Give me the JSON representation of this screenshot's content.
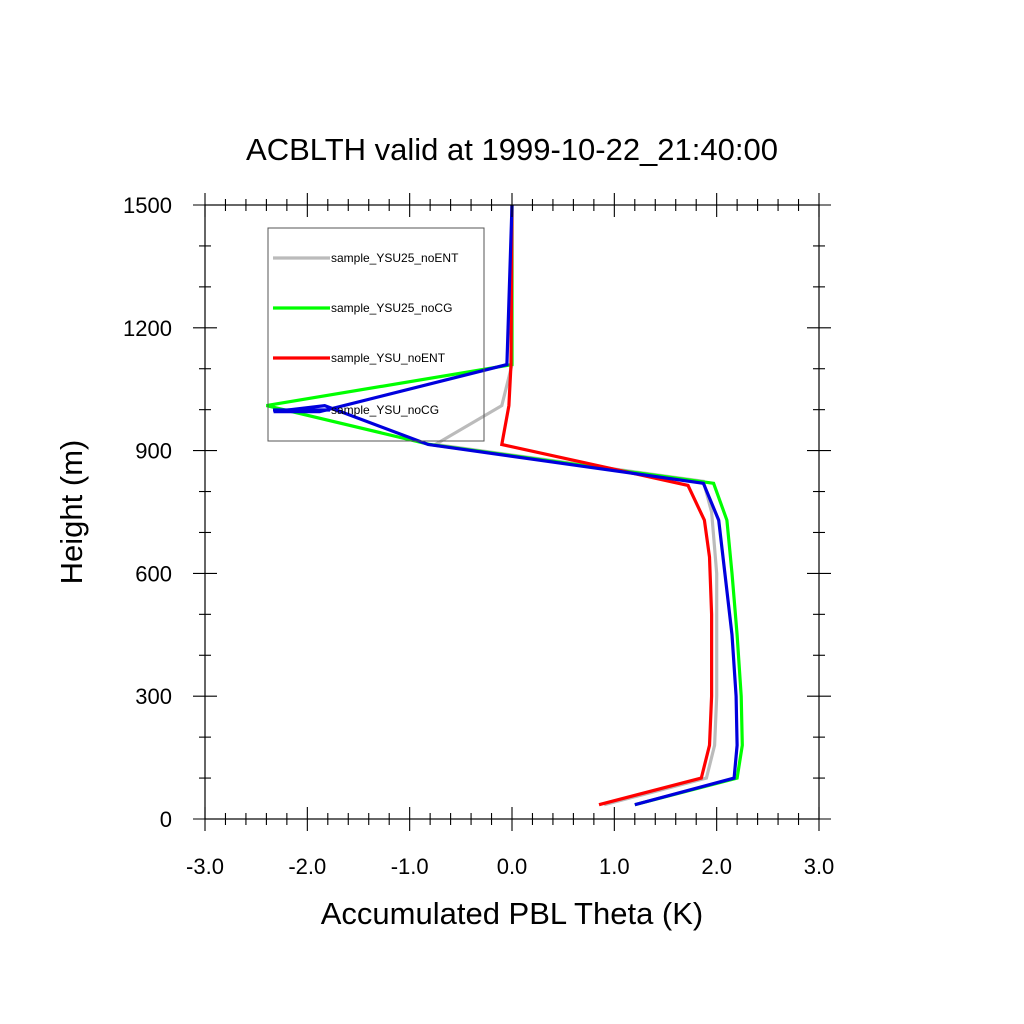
{
  "chart_data": {
    "type": "line",
    "title": "ACBLTH valid at 1999-10-22_21:40:00",
    "xlabel": "Accumulated PBL Theta (K)",
    "ylabel": "Height (m)",
    "xlim": [
      -3.0,
      3.0
    ],
    "ylim": [
      0,
      1500
    ],
    "xticks": [
      -3.0,
      -2.0,
      -1.0,
      0.0,
      1.0,
      2.0,
      3.0
    ],
    "xtick_labels": [
      "-3.0",
      "-2.0",
      "-1.0",
      "0.0",
      "1.0",
      "2.0",
      "3.0"
    ],
    "yticks": [
      0,
      300,
      600,
      900,
      1200,
      1500
    ],
    "ytick_labels": [
      "0",
      "300",
      "600",
      "900",
      "1200",
      "1500"
    ],
    "grid": false,
    "legend_position": "top-left",
    "series": [
      {
        "name": "sample_YSU25_noENT",
        "color": "#bbbbbb",
        "points": [
          [
            0.9,
            35
          ],
          [
            1.9,
            100
          ],
          [
            1.98,
            180
          ],
          [
            2.0,
            300
          ],
          [
            2.0,
            600
          ],
          [
            1.95,
            750
          ],
          [
            1.87,
            825
          ],
          [
            -0.75,
            915
          ],
          [
            -0.1,
            1010
          ],
          [
            0.0,
            1110
          ],
          [
            0.0,
            1500
          ]
        ]
      },
      {
        "name": "sample_YSU25_noCG",
        "color": "#00ff00",
        "points": [
          [
            1.2,
            35
          ],
          [
            2.2,
            100
          ],
          [
            2.25,
            180
          ],
          [
            2.24,
            300
          ],
          [
            2.2,
            450
          ],
          [
            2.15,
            600
          ],
          [
            2.1,
            730
          ],
          [
            1.97,
            820
          ],
          [
            -0.8,
            915
          ],
          [
            -2.4,
            1010
          ],
          [
            0.0,
            1110
          ],
          [
            0.0,
            1500
          ]
        ]
      },
      {
        "name": "sample_YSU_noENT",
        "color": "#ff0000",
        "points": [
          [
            0.85,
            35
          ],
          [
            1.85,
            100
          ],
          [
            1.93,
            180
          ],
          [
            1.95,
            300
          ],
          [
            1.95,
            500
          ],
          [
            1.93,
            640
          ],
          [
            1.88,
            730
          ],
          [
            1.72,
            815
          ],
          [
            -0.1,
            915
          ],
          [
            -0.03,
            1010
          ],
          [
            -0.01,
            1110
          ],
          [
            0.0,
            1500
          ]
        ]
      },
      {
        "name": "sample_YSU_noCG",
        "color": "#0000dd",
        "points": [
          [
            1.2,
            35
          ],
          [
            2.17,
            100
          ],
          [
            2.2,
            180
          ],
          [
            2.19,
            300
          ],
          [
            2.15,
            450
          ],
          [
            2.08,
            600
          ],
          [
            2.02,
            730
          ],
          [
            1.87,
            820
          ],
          [
            -0.82,
            915
          ],
          [
            -1.83,
            1010
          ],
          [
            -2.33,
            995
          ],
          [
            -1.88,
            995
          ],
          [
            -0.05,
            1110
          ],
          [
            0.0,
            1500
          ]
        ]
      }
    ]
  }
}
